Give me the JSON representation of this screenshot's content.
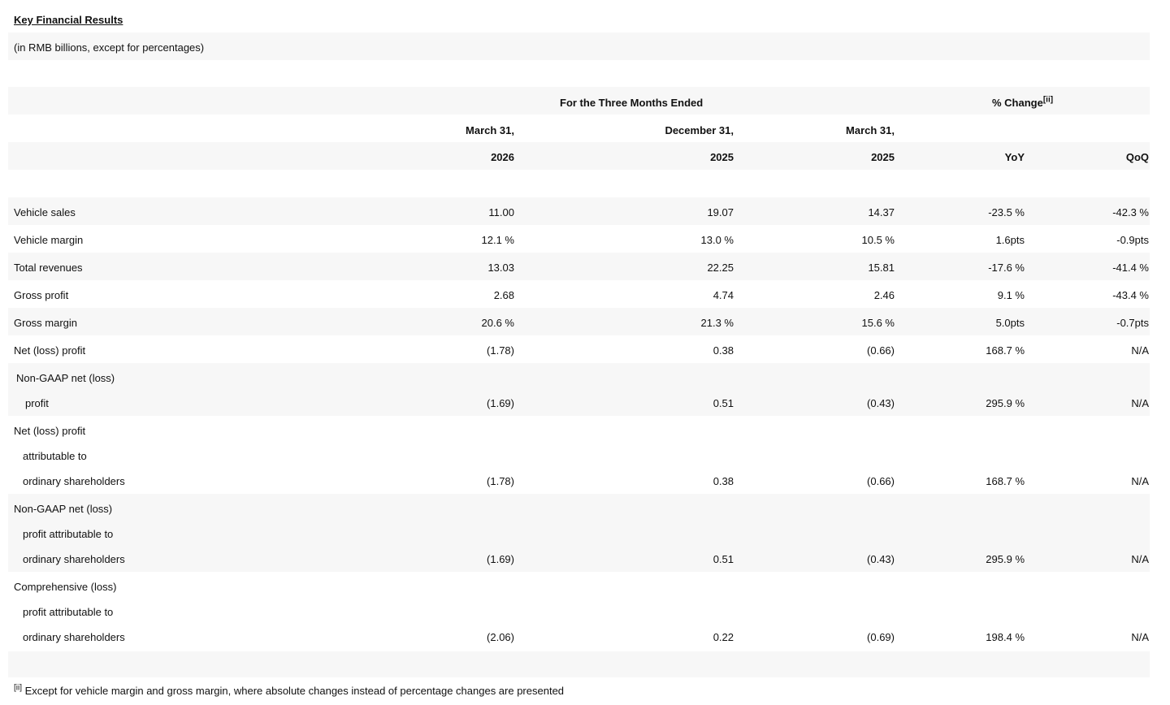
{
  "title": "Key Financial Results",
  "subtitle": "(in RMB billions, except for percentages)",
  "header": {
    "period_group": "For the Three Months Ended",
    "change_group": "% Change",
    "change_footnote_ref": "[ii]",
    "columns": [
      {
        "month": "March 31,",
        "year": "2026"
      },
      {
        "month": "December 31,",
        "year": "2025"
      },
      {
        "month": "March 31,",
        "year": "2025"
      }
    ],
    "yoy": "YoY",
    "qoq": "QoQ"
  },
  "rows": [
    {
      "label": [
        "Vehicle sales"
      ],
      "values": [
        "11.00",
        "19.07",
        "14.37"
      ],
      "yoy": "-23.5 %",
      "qoq": "-42.3 %"
    },
    {
      "label": [
        "Vehicle margin"
      ],
      "values": [
        "12.1 %",
        "13.0 %",
        "10.5 %"
      ],
      "yoy": "1.6pts",
      "qoq": "-0.9pts"
    },
    {
      "label": [
        "Total revenues"
      ],
      "values": [
        "13.03",
        "22.25",
        "15.81"
      ],
      "yoy": "-17.6 %",
      "qoq": "-41.4 %"
    },
    {
      "label": [
        "Gross profit"
      ],
      "values": [
        "2.68",
        "4.74",
        "2.46"
      ],
      "yoy": "9.1 %",
      "qoq": "-43.4 %"
    },
    {
      "label": [
        "Gross margin"
      ],
      "values": [
        "20.6 %",
        "21.3 %",
        "15.6 %"
      ],
      "yoy": "5.0pts",
      "qoq": "-0.7pts"
    },
    {
      "label": [
        "Net (loss) profit"
      ],
      "values": [
        "(1.78)",
        "0.38",
        "(0.66)"
      ],
      "yoy": "168.7 %",
      "qoq": "N/A"
    },
    {
      "label": [
        "Non-GAAP net (loss)",
        "profit"
      ],
      "values": [
        "(1.69)",
        "0.51",
        "(0.43)"
      ],
      "yoy": "295.9 %",
      "qoq": "N/A"
    },
    {
      "label": [
        "Net (loss) profit",
        "attributable to",
        "ordinary shareholders"
      ],
      "values": [
        "(1.78)",
        "0.38",
        "(0.66)"
      ],
      "yoy": "168.7 %",
      "qoq": "N/A"
    },
    {
      "label": [
        "Non-GAAP net (loss)",
        "profit attributable to",
        "ordinary shareholders"
      ],
      "values": [
        "(1.69)",
        "0.51",
        "(0.43)"
      ],
      "yoy": "295.9 %",
      "qoq": "N/A"
    },
    {
      "label": [
        "Comprehensive (loss)",
        "profit attributable to",
        "ordinary shareholders"
      ],
      "values": [
        "(2.06)",
        "0.22",
        "(0.69)"
      ],
      "yoy": "198.4 %",
      "qoq": "N/A"
    }
  ],
  "footnote": {
    "ref": "[ii]",
    "text": "Except for vehicle margin and gross margin, where absolute changes instead of percentage changes are presented"
  }
}
